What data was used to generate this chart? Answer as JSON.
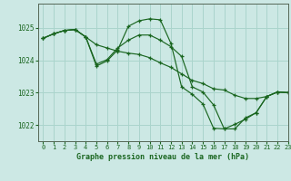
{
  "title": "Graphe pression niveau de la mer (hPa)",
  "background_color": "#cce8e4",
  "grid_color": "#aad4cc",
  "line_color": "#1a6620",
  "xlim": [
    -0.5,
    23
  ],
  "ylim": [
    1021.5,
    1025.75
  ],
  "yticks": [
    1022,
    1023,
    1024,
    1025
  ],
  "xticks": [
    0,
    1,
    2,
    3,
    4,
    5,
    6,
    7,
    8,
    9,
    10,
    11,
    12,
    13,
    14,
    15,
    16,
    17,
    18,
    19,
    20,
    21,
    22,
    23
  ],
  "series": [
    [
      1024.68,
      1024.82,
      1024.92,
      1024.95,
      1024.72,
      1023.82,
      1023.98,
      1024.32,
      1025.05,
      1025.22,
      1025.28,
      1025.25,
      1024.52,
      1023.18,
      1022.95,
      1022.65,
      1021.9,
      1021.88,
      1022.02,
      1022.18,
      1022.38,
      1022.88,
      1023.02,
      1023.0
    ],
    [
      1024.68,
      1024.82,
      1024.92,
      1024.95,
      1024.72,
      1024.48,
      1024.38,
      1024.28,
      1024.22,
      1024.18,
      1024.08,
      1023.92,
      1023.78,
      1023.58,
      1023.38,
      1023.28,
      1023.12,
      1023.08,
      1022.92,
      1022.82,
      1022.82,
      1022.88,
      1023.02,
      1023.0
    ],
    [
      1024.68,
      1024.82,
      1024.92,
      1024.95,
      1024.72,
      1023.88,
      1024.02,
      1024.38,
      1024.62,
      1024.78,
      1024.78,
      1024.62,
      1024.42,
      1024.12,
      1023.18,
      1023.02,
      1022.62,
      1021.88,
      1021.88,
      1022.22,
      1022.38,
      1022.88,
      1023.02,
      1023.0
    ]
  ]
}
